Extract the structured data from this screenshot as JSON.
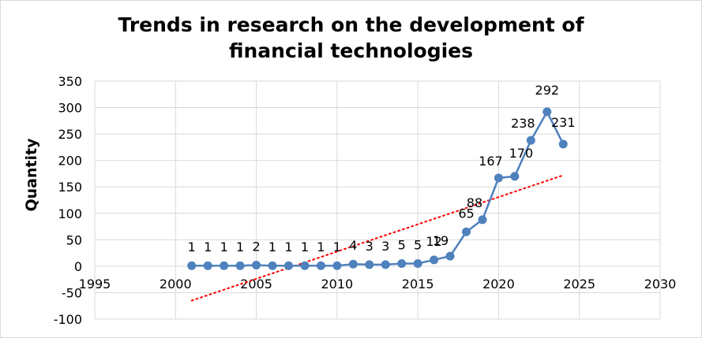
{
  "chart_data": {
    "type": "scatter",
    "title": "Trends in research on the development of financial technologies",
    "title_lines": [
      "Trends in research on the development of",
      "financial technologies"
    ],
    "ylabel": "Quantity",
    "xlabel": "",
    "xlim": [
      1995,
      2030
    ],
    "ylim": [
      -100,
      350
    ],
    "x_ticks": [
      1995,
      2000,
      2005,
      2010,
      2015,
      2020,
      2025,
      2030
    ],
    "y_ticks": [
      -100,
      -50,
      0,
      50,
      100,
      150,
      200,
      250,
      300,
      350
    ],
    "grid": true,
    "colors": {
      "series": "#4f81bd",
      "trendline": "#ff0000",
      "grid": "#d9d9d9"
    },
    "series": [
      {
        "x": [
          2001,
          2002,
          2003,
          2004,
          2005,
          2006,
          2007,
          2008,
          2009,
          2010,
          2011,
          2012,
          2013,
          2014,
          2015,
          2016,
          2017,
          2018,
          2019,
          2020,
          2021,
          2022,
          2023,
          2024
        ],
        "values": [
          1,
          1,
          1,
          1,
          2,
          1,
          1,
          1,
          1,
          1,
          4,
          3,
          3,
          5,
          5,
          12,
          19,
          65,
          88,
          167,
          170,
          238,
          292,
          231
        ],
        "labels": [
          "1",
          "1",
          "1",
          "1",
          "2",
          "1",
          "1",
          "1",
          "1",
          "1",
          "4",
          "3",
          "3",
          "5",
          "5",
          "12",
          "19",
          "65",
          "88",
          "167",
          "170",
          "238",
          "292",
          "231"
        ]
      }
    ],
    "trendline": {
      "type": "linear",
      "x": [
        2001,
        2024
      ],
      "values": [
        -65,
        172
      ]
    }
  }
}
